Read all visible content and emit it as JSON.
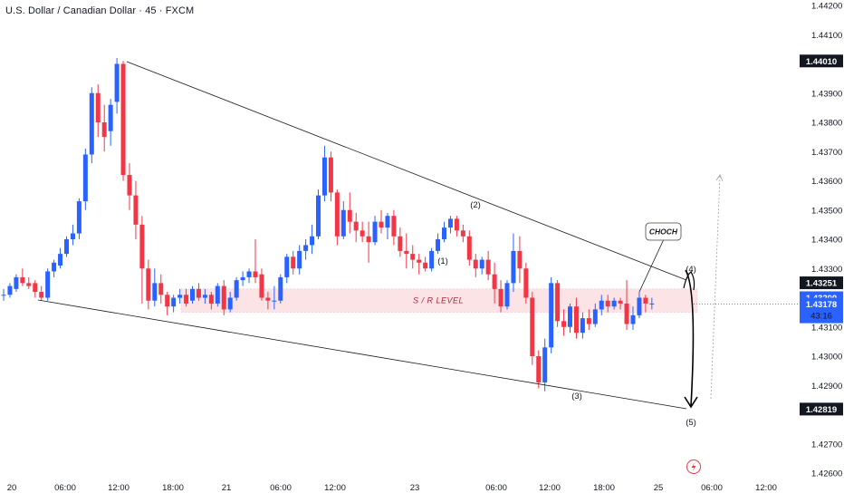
{
  "title": "U.S. Dollar / Canadian Dollar · 45 · FXCM",
  "colors": {
    "up": "#2962ff",
    "down": "#f23645",
    "line": "#131722",
    "sr_zone": "#fbe3e6",
    "current_price_bg": "#2962ff",
    "tag_bg": "#131722",
    "grid": "#f0f3fa"
  },
  "chart_data": {
    "type": "candlestick",
    "symbol": "USDCAD",
    "timeframe": "45",
    "source": "FXCM",
    "y_ticks": [
      "1.44200",
      "1.44100",
      "1.43900",
      "1.43800",
      "1.43700",
      "1.43600",
      "1.43500",
      "1.43400",
      "1.43300",
      "1.43100",
      "1.43000",
      "1.42900",
      "1.42700",
      "1.42600"
    ],
    "x_ticks": [
      "20",
      "06:00",
      "12:00",
      "18:00",
      "21",
      "06:00",
      "12:00",
      "23",
      "06:00",
      "12:00",
      "18:00",
      "25",
      "06:00",
      "12:00"
    ],
    "price_tags": {
      "upper_level": "1.44010",
      "level_4325": "1.43251",
      "hidden_partial": "1.43200",
      "current_price": "1.43178",
      "countdown": "43:16",
      "lower_level": "1.42819"
    },
    "annotations": {
      "sr_label": "S / R LEVEL",
      "choch": "CHOCH",
      "wave_1": "(1)",
      "wave_2": "(2)",
      "wave_3": "(3)",
      "wave_4": "(4)",
      "wave_5": "(5)"
    },
    "sr_zone": [
      1.4315,
      1.4323
    ],
    "wedge": {
      "upper": [
        [
          0,
          1.44013
        ],
        [
          115,
          1.43251
        ]
      ],
      "lower": [
        [
          0,
          1.43195
        ],
        [
          115,
          1.42819
        ]
      ]
    },
    "candles": [
      {
        "o": 1.4321,
        "h": 1.4323,
        "l": 1.4319,
        "c": 1.4321
      },
      {
        "o": 1.4321,
        "h": 1.4325,
        "l": 1.432,
        "c": 1.4324
      },
      {
        "o": 1.4323,
        "h": 1.4328,
        "l": 1.4322,
        "c": 1.4327
      },
      {
        "o": 1.4327,
        "h": 1.433,
        "l": 1.4324,
        "c": 1.4325
      },
      {
        "o": 1.4325,
        "h": 1.4327,
        "l": 1.4323,
        "c": 1.4324
      },
      {
        "o": 1.4325,
        "h": 1.4326,
        "l": 1.432,
        "c": 1.4322
      },
      {
        "o": 1.4322,
        "h": 1.4324,
        "l": 1.4319,
        "c": 1.432
      },
      {
        "o": 1.432,
        "h": 1.433,
        "l": 1.4319,
        "c": 1.4329
      },
      {
        "o": 1.4329,
        "h": 1.4333,
        "l": 1.4327,
        "c": 1.4332
      },
      {
        "o": 1.4331,
        "h": 1.4337,
        "l": 1.433,
        "c": 1.4335
      },
      {
        "o": 1.4335,
        "h": 1.4341,
        "l": 1.4334,
        "c": 1.434
      },
      {
        "o": 1.434,
        "h": 1.4345,
        "l": 1.4338,
        "c": 1.4342
      },
      {
        "o": 1.4342,
        "h": 1.4354,
        "l": 1.434,
        "c": 1.4353
      },
      {
        "o": 1.4353,
        "h": 1.4371,
        "l": 1.435,
        "c": 1.4369
      },
      {
        "o": 1.4369,
        "h": 1.4392,
        "l": 1.4366,
        "c": 1.439
      },
      {
        "o": 1.439,
        "h": 1.4393,
        "l": 1.4375,
        "c": 1.438
      },
      {
        "o": 1.438,
        "h": 1.4386,
        "l": 1.437,
        "c": 1.4375
      },
      {
        "o": 1.4377,
        "h": 1.4388,
        "l": 1.4372,
        "c": 1.4386
      },
      {
        "o": 1.4387,
        "h": 1.4402,
        "l": 1.4383,
        "c": 1.44
      },
      {
        "o": 1.44,
        "h": 1.4401,
        "l": 1.436,
        "c": 1.4362
      },
      {
        "o": 1.4362,
        "h": 1.4366,
        "l": 1.435,
        "c": 1.4355
      },
      {
        "o": 1.4355,
        "h": 1.436,
        "l": 1.434,
        "c": 1.4345
      },
      {
        "o": 1.4345,
        "h": 1.4348,
        "l": 1.4318,
        "c": 1.433
      },
      {
        "o": 1.433,
        "h": 1.4333,
        "l": 1.4316,
        "c": 1.4319
      },
      {
        "o": 1.4319,
        "h": 1.433,
        "l": 1.4317,
        "c": 1.4325
      },
      {
        "o": 1.4325,
        "h": 1.4328,
        "l": 1.4318,
        "c": 1.4321
      },
      {
        "o": 1.4321,
        "h": 1.4322,
        "l": 1.4314,
        "c": 1.4317
      },
      {
        "o": 1.4317,
        "h": 1.4321,
        "l": 1.4315,
        "c": 1.432
      },
      {
        "o": 1.432,
        "h": 1.4323,
        "l": 1.4318,
        "c": 1.4321
      },
      {
        "o": 1.4321,
        "h": 1.4323,
        "l": 1.4317,
        "c": 1.4318
      },
      {
        "o": 1.4319,
        "h": 1.4324,
        "l": 1.4318,
        "c": 1.4323
      },
      {
        "o": 1.4323,
        "h": 1.4325,
        "l": 1.4319,
        "c": 1.432
      },
      {
        "o": 1.432,
        "h": 1.4323,
        "l": 1.4318,
        "c": 1.4321
      },
      {
        "o": 1.4321,
        "h": 1.4322,
        "l": 1.4316,
        "c": 1.4318
      },
      {
        "o": 1.4318,
        "h": 1.4325,
        "l": 1.4317,
        "c": 1.4324
      },
      {
        "o": 1.4324,
        "h": 1.4326,
        "l": 1.4314,
        "c": 1.4316
      },
      {
        "o": 1.4316,
        "h": 1.4322,
        "l": 1.4315,
        "c": 1.432
      },
      {
        "o": 1.432,
        "h": 1.4327,
        "l": 1.4319,
        "c": 1.4326
      },
      {
        "o": 1.4326,
        "h": 1.4329,
        "l": 1.4324,
        "c": 1.4327
      },
      {
        "o": 1.4327,
        "h": 1.433,
        "l": 1.4325,
        "c": 1.4329
      },
      {
        "o": 1.4329,
        "h": 1.434,
        "l": 1.4325,
        "c": 1.4327
      },
      {
        "o": 1.4328,
        "h": 1.433,
        "l": 1.4319,
        "c": 1.432
      },
      {
        "o": 1.432,
        "h": 1.4322,
        "l": 1.4316,
        "c": 1.4319
      },
      {
        "o": 1.4319,
        "h": 1.4324,
        "l": 1.4316,
        "c": 1.4319
      },
      {
        "o": 1.4319,
        "h": 1.4328,
        "l": 1.4318,
        "c": 1.4327
      },
      {
        "o": 1.4327,
        "h": 1.4335,
        "l": 1.4325,
        "c": 1.4334
      },
      {
        "o": 1.4334,
        "h": 1.4336,
        "l": 1.4328,
        "c": 1.433
      },
      {
        "o": 1.433,
        "h": 1.4338,
        "l": 1.4328,
        "c": 1.4336
      },
      {
        "o": 1.4336,
        "h": 1.434,
        "l": 1.4333,
        "c": 1.4338
      },
      {
        "o": 1.4338,
        "h": 1.4345,
        "l": 1.4335,
        "c": 1.4341
      },
      {
        "o": 1.4341,
        "h": 1.4357,
        "l": 1.434,
        "c": 1.4355
      },
      {
        "o": 1.4355,
        "h": 1.4372,
        "l": 1.4353,
        "c": 1.4368
      },
      {
        "o": 1.4368,
        "h": 1.437,
        "l": 1.4353,
        "c": 1.4356
      },
      {
        "o": 1.4356,
        "h": 1.4357,
        "l": 1.4338,
        "c": 1.4341
      },
      {
        "o": 1.4341,
        "h": 1.4353,
        "l": 1.434,
        "c": 1.435
      },
      {
        "o": 1.435,
        "h": 1.4356,
        "l": 1.4342,
        "c": 1.4346
      },
      {
        "o": 1.4346,
        "h": 1.4349,
        "l": 1.4339,
        "c": 1.4343
      },
      {
        "o": 1.4343,
        "h": 1.4346,
        "l": 1.4339,
        "c": 1.4341
      },
      {
        "o": 1.4341,
        "h": 1.4346,
        "l": 1.4332,
        "c": 1.4339
      },
      {
        "o": 1.4339,
        "h": 1.4348,
        "l": 1.4338,
        "c": 1.4346
      },
      {
        "o": 1.4346,
        "h": 1.435,
        "l": 1.4342,
        "c": 1.4344
      },
      {
        "o": 1.4344,
        "h": 1.4349,
        "l": 1.434,
        "c": 1.4348
      },
      {
        "o": 1.4348,
        "h": 1.435,
        "l": 1.4338,
        "c": 1.4341
      },
      {
        "o": 1.4341,
        "h": 1.4344,
        "l": 1.4334,
        "c": 1.4336
      },
      {
        "o": 1.4336,
        "h": 1.4342,
        "l": 1.433,
        "c": 1.4335
      },
      {
        "o": 1.4335,
        "h": 1.4338,
        "l": 1.433,
        "c": 1.4333
      },
      {
        "o": 1.4333,
        "h": 1.4335,
        "l": 1.4328,
        "c": 1.4332
      },
      {
        "o": 1.4332,
        "h": 1.4334,
        "l": 1.4329,
        "c": 1.433
      },
      {
        "o": 1.433,
        "h": 1.4337,
        "l": 1.4329,
        "c": 1.4336
      },
      {
        "o": 1.4336,
        "h": 1.4342,
        "l": 1.4335,
        "c": 1.434
      },
      {
        "o": 1.434,
        "h": 1.4346,
        "l": 1.4339,
        "c": 1.4344
      },
      {
        "o": 1.4344,
        "h": 1.4348,
        "l": 1.4342,
        "c": 1.4347
      },
      {
        "o": 1.4347,
        "h": 1.4348,
        "l": 1.4341,
        "c": 1.4343
      },
      {
        "o": 1.4343,
        "h": 1.4345,
        "l": 1.4339,
        "c": 1.4341
      },
      {
        "o": 1.4341,
        "h": 1.4343,
        "l": 1.4331,
        "c": 1.4333
      },
      {
        "o": 1.4333,
        "h": 1.4335,
        "l": 1.4327,
        "c": 1.433
      },
      {
        "o": 1.433,
        "h": 1.4334,
        "l": 1.4328,
        "c": 1.4333
      },
      {
        "o": 1.4333,
        "h": 1.4336,
        "l": 1.4326,
        "c": 1.4328
      },
      {
        "o": 1.4328,
        "h": 1.4332,
        "l": 1.4318,
        "c": 1.4323
      },
      {
        "o": 1.4323,
        "h": 1.4326,
        "l": 1.4315,
        "c": 1.4317
      },
      {
        "o": 1.4317,
        "h": 1.4326,
        "l": 1.4316,
        "c": 1.4325
      },
      {
        "o": 1.4325,
        "h": 1.4342,
        "l": 1.4322,
        "c": 1.4336
      },
      {
        "o": 1.4336,
        "h": 1.4341,
        "l": 1.4325,
        "c": 1.433
      },
      {
        "o": 1.433,
        "h": 1.4332,
        "l": 1.4318,
        "c": 1.432
      },
      {
        "o": 1.432,
        "h": 1.4322,
        "l": 1.4297,
        "c": 1.43
      },
      {
        "o": 1.43,
        "h": 1.4302,
        "l": 1.4289,
        "c": 1.4291
      },
      {
        "o": 1.4291,
        "h": 1.4306,
        "l": 1.4288,
        "c": 1.4303
      },
      {
        "o": 1.4303,
        "h": 1.4327,
        "l": 1.4301,
        "c": 1.4325
      },
      {
        "o": 1.4325,
        "h": 1.4326,
        "l": 1.431,
        "c": 1.4312
      },
      {
        "o": 1.4312,
        "h": 1.4316,
        "l": 1.4307,
        "c": 1.431
      },
      {
        "o": 1.431,
        "h": 1.4318,
        "l": 1.4308,
        "c": 1.4317
      },
      {
        "o": 1.4317,
        "h": 1.432,
        "l": 1.4306,
        "c": 1.4308
      },
      {
        "o": 1.4308,
        "h": 1.4315,
        "l": 1.4306,
        "c": 1.4313
      },
      {
        "o": 1.4313,
        "h": 1.4316,
        "l": 1.4309,
        "c": 1.4311
      },
      {
        "o": 1.4311,
        "h": 1.4318,
        "l": 1.431,
        "c": 1.4316
      },
      {
        "o": 1.4316,
        "h": 1.4321,
        "l": 1.4314,
        "c": 1.4319
      },
      {
        "o": 1.4319,
        "h": 1.4321,
        "l": 1.4315,
        "c": 1.4317
      },
      {
        "o": 1.4317,
        "h": 1.432,
        "l": 1.4316,
        "c": 1.4319
      },
      {
        "o": 1.4319,
        "h": 1.432,
        "l": 1.4316,
        "c": 1.4318
      },
      {
        "o": 1.4318,
        "h": 1.4326,
        "l": 1.4309,
        "c": 1.4311
      },
      {
        "o": 1.4311,
        "h": 1.4317,
        "l": 1.4309,
        "c": 1.4314
      },
      {
        "o": 1.4314,
        "h": 1.4322,
        "l": 1.4313,
        "c": 1.432
      },
      {
        "o": 1.432,
        "h": 1.4321,
        "l": 1.4315,
        "c": 1.4318
      },
      {
        "o": 1.4318,
        "h": 1.432,
        "l": 1.4316,
        "c": 1.4318
      }
    ]
  }
}
